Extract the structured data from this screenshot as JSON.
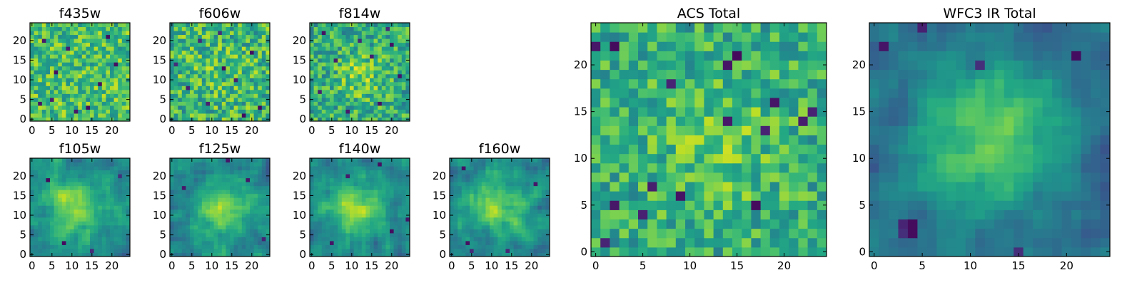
{
  "chart_data": [
    {
      "id": "f435w",
      "type": "heatmap",
      "title": "f435w",
      "grid_size": 25,
      "xlim": [
        0,
        24
      ],
      "ylim": [
        0,
        24
      ],
      "xticks": [
        0,
        5,
        10,
        15,
        20
      ],
      "yticks": [
        0,
        5,
        10,
        15,
        20
      ],
      "colormap": "viridis",
      "blob": {
        "cx": 12,
        "cy": 12,
        "sigma": 5,
        "amp": 0.0
      },
      "base": 0.7,
      "noise": 0.22,
      "dark_pixels": [
        [
          5,
          5
        ],
        [
          17,
          9
        ],
        [
          14,
          3
        ],
        [
          9,
          18
        ],
        [
          21,
          14
        ],
        [
          3,
          20
        ],
        [
          11,
          2
        ],
        [
          6,
          12
        ],
        [
          19,
          21
        ],
        [
          2,
          4
        ]
      ],
      "seed": 11
    },
    {
      "id": "f606w",
      "type": "heatmap",
      "title": "f606w",
      "grid_size": 25,
      "xlim": [
        0,
        24
      ],
      "ylim": [
        0,
        24
      ],
      "xticks": [
        0,
        5,
        10,
        15,
        20
      ],
      "yticks": [
        0,
        5,
        10,
        15,
        20
      ],
      "colormap": "viridis",
      "blob": {
        "cx": 12,
        "cy": 12,
        "sigma": 5,
        "amp": 0.05
      },
      "base": 0.66,
      "noise": 0.24,
      "dark_pixels": [
        [
          12,
          22
        ],
        [
          16,
          10
        ],
        [
          4,
          8
        ],
        [
          9,
          4
        ],
        [
          20,
          17
        ],
        [
          13,
          13
        ],
        [
          22,
          3
        ],
        [
          7,
          20
        ],
        [
          1,
          14
        ],
        [
          18,
          1
        ]
      ],
      "seed": 23
    },
    {
      "id": "f814w",
      "type": "heatmap",
      "title": "f814w",
      "grid_size": 25,
      "xlim": [
        0,
        24
      ],
      "ylim": [
        0,
        24
      ],
      "xticks": [
        0,
        5,
        10,
        15,
        20
      ],
      "yticks": [
        0,
        5,
        10,
        15,
        20
      ],
      "colormap": "viridis",
      "blob": {
        "cx": 12,
        "cy": 11,
        "sigma": 4,
        "amp": 0.18
      },
      "base": 0.62,
      "noise": 0.22,
      "dark_pixels": [
        [
          3,
          22
        ],
        [
          20,
          19
        ],
        [
          6,
          15
        ],
        [
          17,
          4
        ],
        [
          12,
          20
        ],
        [
          22,
          11
        ],
        [
          2,
          7
        ],
        [
          9,
          2
        ],
        [
          15,
          16
        ],
        [
          19,
          23
        ]
      ],
      "seed": 37
    },
    {
      "id": "f105w",
      "type": "heatmap",
      "title": "f105w",
      "grid_size": 25,
      "xlim": [
        0,
        24
      ],
      "ylim": [
        0,
        24
      ],
      "xticks": [
        0,
        5,
        10,
        15,
        20
      ],
      "yticks": [
        0,
        5,
        10,
        15,
        20
      ],
      "colormap": "viridis",
      "blob": {
        "cx": 11,
        "cy": 12,
        "sigma": 5,
        "amp": 0.35
      },
      "base": 0.48,
      "noise": 0.13,
      "dark_pixels": [
        [
          4,
          19
        ],
        [
          15,
          1
        ],
        [
          22,
          20
        ],
        [
          8,
          3
        ]
      ],
      "seed": 41
    },
    {
      "id": "f125w",
      "type": "heatmap",
      "title": "f125w",
      "grid_size": 25,
      "xlim": [
        0,
        24
      ],
      "ylim": [
        0,
        24
      ],
      "xticks": [
        0,
        5,
        10,
        15,
        20
      ],
      "yticks": [
        0,
        5,
        10,
        15,
        20
      ],
      "colormap": "viridis",
      "blob": {
        "cx": 13,
        "cy": 11,
        "sigma": 5,
        "amp": 0.35
      },
      "base": 0.46,
      "noise": 0.13,
      "dark_pixels": [
        [
          14,
          24
        ],
        [
          3,
          17
        ],
        [
          23,
          4
        ],
        [
          19,
          19
        ]
      ],
      "seed": 53
    },
    {
      "id": "f140w",
      "type": "heatmap",
      "title": "f140w",
      "grid_size": 25,
      "xlim": [
        0,
        24
      ],
      "ylim": [
        0,
        24
      ],
      "xticks": [
        0,
        5,
        10,
        15,
        20
      ],
      "yticks": [
        0,
        5,
        10,
        15,
        20
      ],
      "colormap": "viridis",
      "blob": {
        "cx": 11,
        "cy": 12,
        "sigma": 5,
        "amp": 0.35
      },
      "base": 0.46,
      "noise": 0.13,
      "dark_pixels": [
        [
          9,
          20
        ],
        [
          20,
          6
        ],
        [
          24,
          9
        ],
        [
          5,
          3
        ],
        [
          17,
          23
        ]
      ],
      "seed": 67
    },
    {
      "id": "f160w",
      "type": "heatmap",
      "title": "f160w",
      "grid_size": 25,
      "xlim": [
        0,
        24
      ],
      "ylim": [
        0,
        24
      ],
      "xticks": [
        0,
        5,
        10,
        15,
        20
      ],
      "yticks": [
        0,
        5,
        10,
        15,
        20
      ],
      "colormap": "viridis",
      "blob": {
        "cx": 11,
        "cy": 12,
        "sigma": 5,
        "amp": 0.36
      },
      "base": 0.46,
      "noise": 0.14,
      "dark_pixels": [
        [
          4,
          3
        ],
        [
          5,
          1
        ],
        [
          14,
          1
        ],
        [
          21,
          18
        ],
        [
          3,
          22
        ]
      ],
      "seed": 79
    },
    {
      "id": "acs_total",
      "type": "heatmap",
      "title": "ACS Total",
      "grid_size": 25,
      "xlim": [
        0,
        24
      ],
      "ylim": [
        0,
        24
      ],
      "xticks": [
        0,
        5,
        10,
        15,
        20
      ],
      "yticks": [
        0,
        5,
        10,
        15,
        20
      ],
      "colormap": "viridis",
      "blob": {
        "cx": 13,
        "cy": 12,
        "sigma": 5,
        "amp": 0.14
      },
      "base": 0.62,
      "noise": 0.2,
      "dark_pixels": [
        [
          0,
          22
        ],
        [
          2,
          22
        ],
        [
          15,
          21
        ],
        [
          14,
          20
        ],
        [
          8,
          18
        ],
        [
          19,
          16
        ],
        [
          14,
          14
        ],
        [
          22,
          14
        ],
        [
          18,
          13
        ],
        [
          2,
          5
        ],
        [
          5,
          4
        ],
        [
          1,
          1
        ],
        [
          6,
          7
        ],
        [
          9,
          6
        ],
        [
          17,
          5
        ],
        [
          23,
          15
        ]
      ],
      "seed": 97
    },
    {
      "id": "wfc3_ir_total",
      "type": "heatmap",
      "title": "WFC3 IR Total",
      "grid_size": 25,
      "xlim": [
        0,
        24
      ],
      "ylim": [
        0,
        24
      ],
      "xticks": [
        0,
        5,
        10,
        15,
        20
      ],
      "yticks": [
        0,
        5,
        10,
        15,
        20
      ],
      "colormap": "viridis",
      "blob": {
        "cx": 12,
        "cy": 12,
        "sigma": 5.5,
        "amp": 0.42
      },
      "base": 0.36,
      "noise": 0.1,
      "dark_pixels": [
        [
          3,
          3
        ],
        [
          3,
          2
        ],
        [
          4,
          2
        ],
        [
          4,
          3
        ],
        [
          5,
          24
        ],
        [
          15,
          0
        ],
        [
          11,
          20
        ],
        [
          21,
          21
        ],
        [
          1,
          22
        ]
      ],
      "seed": 113
    }
  ]
}
